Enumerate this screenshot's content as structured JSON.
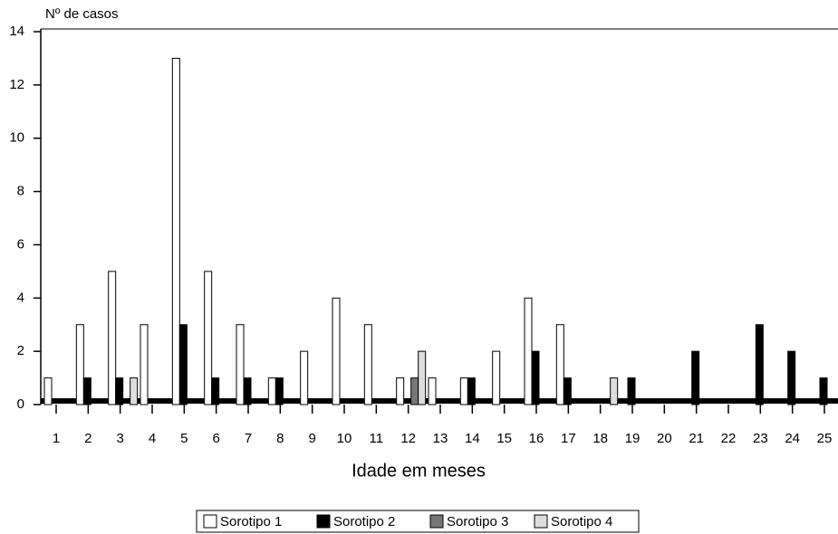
{
  "chart_data": {
    "type": "bar",
    "y_label": "Nº de casos",
    "x_label": "Idade em meses",
    "categories": [
      "1",
      "2",
      "3",
      "4",
      "5",
      "6",
      "7",
      "8",
      "9",
      "10",
      "11",
      "12",
      "13",
      "14",
      "15",
      "16",
      "17",
      "18",
      "19",
      "20",
      "21",
      "22",
      "23",
      "24",
      "25"
    ],
    "series": [
      {
        "name": "Sorotipo 1",
        "color": "#ffffff",
        "values": [
          1,
          3,
          5,
          3,
          13,
          5,
          3,
          1,
          2,
          4,
          3,
          1,
          1,
          1,
          2,
          4,
          3,
          0,
          0,
          0,
          0,
          0,
          0,
          0,
          0
        ]
      },
      {
        "name": "Sorotipo 2",
        "color": "#000000",
        "values": [
          0,
          1,
          1,
          0,
          3,
          1,
          1,
          1,
          0,
          0,
          0,
          0,
          0,
          1,
          0,
          2,
          1,
          0,
          1,
          0,
          2,
          0,
          3,
          2,
          1
        ]
      },
      {
        "name": "Sorotipo 3",
        "color": "#777777",
        "values": [
          0,
          0,
          0,
          0,
          0,
          0,
          0,
          0,
          0,
          0,
          0,
          1,
          0,
          0,
          0,
          0,
          0,
          0,
          0,
          0,
          0,
          0,
          0,
          0,
          0
        ]
      },
      {
        "name": "Sorotipo 4",
        "color": "#dddddd",
        "values": [
          0,
          0,
          1,
          0,
          0,
          0,
          0,
          0,
          0,
          0,
          0,
          2,
          0,
          0,
          0,
          0,
          0,
          1,
          0,
          0,
          0,
          0,
          0,
          0,
          0
        ]
      }
    ],
    "ylim": [
      0,
      14
    ],
    "yticks": [
      0,
      2,
      4,
      6,
      8,
      10,
      12,
      14
    ]
  }
}
